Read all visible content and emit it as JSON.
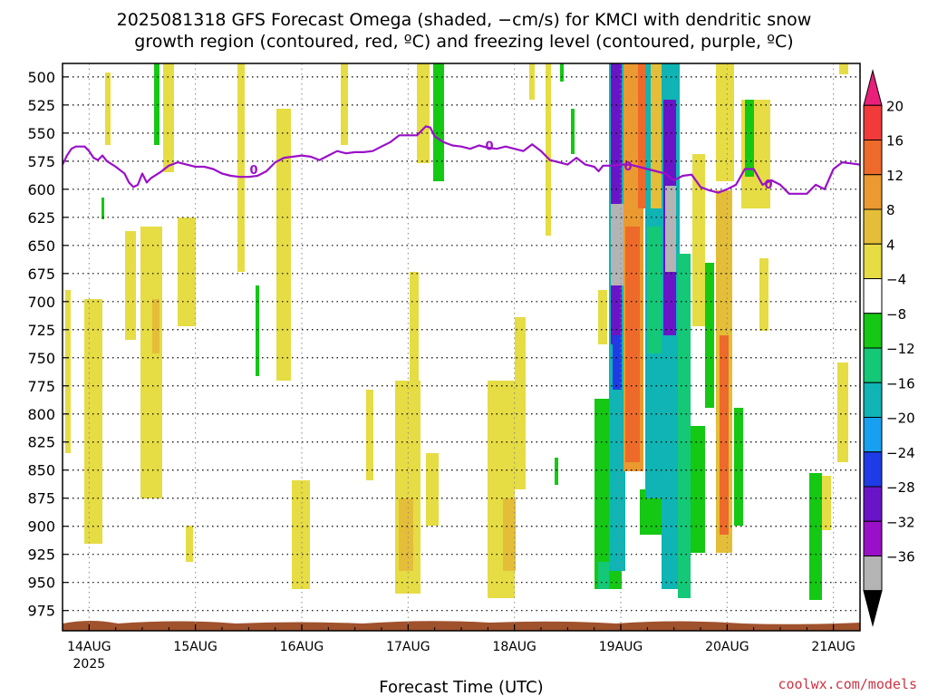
{
  "title_line1": "2025081318 GFS Forecast Omega (shaded, −cm/s) for KMCI with dendritic snow",
  "title_line2": "growth region (contoured, red, ºC) and freezing level (contoured, purple, ºC)",
  "xlabel": "Forecast Time (UTC)",
  "credit": "coolwx.com/models",
  "chart_data": {
    "type": "heatmap",
    "title": "2025081318 GFS Forecast Omega (shaded, −cm/s) for KMCI with dendritic snow growth region (contoured, red, ºC) and freezing level (contoured, purple, ºC)",
    "xlabel": "Forecast Time (UTC)",
    "ylabel": "",
    "x_ticks": [
      {
        "label": "14AUG",
        "sub": "2025",
        "t": 0
      },
      {
        "label": "15AUG",
        "t": 24
      },
      {
        "label": "16AUG",
        "t": 48
      },
      {
        "label": "17AUG",
        "t": 72
      },
      {
        "label": "18AUG",
        "t": 96
      },
      {
        "label": "19AUG",
        "t": 120
      },
      {
        "label": "20AUG",
        "t": 144
      },
      {
        "label": "21AUG",
        "t": 168
      }
    ],
    "xlim_hours": [
      -6,
      174
    ],
    "y_ticks": [
      500,
      525,
      550,
      575,
      600,
      625,
      650,
      675,
      700,
      725,
      750,
      775,
      800,
      825,
      850,
      875,
      900,
      925,
      950,
      975
    ],
    "ylim_hpa": [
      488,
      993
    ],
    "grid": true,
    "colorbar": {
      "labels": [
        "20",
        "16",
        "12",
        "8",
        "4",
        "−4",
        "−8",
        "−12",
        "−16",
        "−20",
        "−24",
        "−28",
        "−32",
        "−36"
      ],
      "colors": [
        "#e8207a",
        "#f23a3a",
        "#ee6a2a",
        "#ea9a30",
        "#e4be38",
        "#e6dc44",
        "#ffffff",
        "#14c814",
        "#14c878",
        "#10b4b4",
        "#18a0f0",
        "#1e3ce6",
        "#6a14c8",
        "#9a10c8",
        "#b4b4b4",
        "#000000"
      ]
    },
    "freezing_level": {
      "label": "0",
      "color": "#9a10c8",
      "points": [
        [
          -6,
          578
        ],
        [
          -5,
          570
        ],
        [
          -4,
          564
        ],
        [
          -3,
          562
        ],
        [
          -1,
          562
        ],
        [
          0,
          566
        ],
        [
          1,
          572
        ],
        [
          2,
          574
        ],
        [
          3,
          570
        ],
        [
          4,
          575
        ],
        [
          6,
          580
        ],
        [
          8,
          586
        ],
        [
          9,
          594
        ],
        [
          10,
          598
        ],
        [
          11,
          596
        ],
        [
          12,
          586
        ],
        [
          13,
          594
        ],
        [
          14,
          590
        ],
        [
          16,
          585
        ],
        [
          18,
          579
        ],
        [
          20,
          576
        ],
        [
          22,
          578
        ],
        [
          24,
          580
        ],
        [
          26,
          580
        ],
        [
          28,
          582
        ],
        [
          30,
          586
        ],
        [
          32,
          588
        ],
        [
          34,
          589
        ],
        [
          36,
          589
        ],
        [
          38,
          588
        ],
        [
          40,
          584
        ],
        [
          42,
          576
        ],
        [
          44,
          572
        ],
        [
          46,
          571
        ],
        [
          48,
          570
        ],
        [
          50,
          571
        ],
        [
          52,
          574
        ],
        [
          54,
          570
        ],
        [
          56,
          566
        ],
        [
          58,
          568
        ],
        [
          60,
          567
        ],
        [
          62,
          567
        ],
        [
          64,
          566
        ],
        [
          66,
          562
        ],
        [
          68,
          558
        ],
        [
          70,
          552
        ],
        [
          72,
          552
        ],
        [
          74,
          552
        ],
        [
          75,
          548
        ],
        [
          76,
          544
        ],
        [
          77,
          545
        ],
        [
          78,
          553
        ],
        [
          80,
          558
        ],
        [
          82,
          561
        ],
        [
          84,
          562
        ],
        [
          86,
          564
        ],
        [
          88,
          561
        ],
        [
          90,
          563
        ],
        [
          92,
          564
        ],
        [
          94,
          562
        ],
        [
          96,
          564
        ],
        [
          98,
          566
        ],
        [
          100,
          560
        ],
        [
          102,
          566
        ],
        [
          104,
          574
        ],
        [
          106,
          576
        ],
        [
          108,
          578
        ],
        [
          110,
          572
        ],
        [
          112,
          578
        ],
        [
          114,
          580
        ],
        [
          115,
          584
        ],
        [
          116,
          579
        ],
        [
          118,
          579
        ],
        [
          120,
          578
        ],
        [
          122,
          578
        ],
        [
          124,
          580
        ],
        [
          126,
          582
        ],
        [
          128,
          584
        ],
        [
          130,
          586
        ],
        [
          132,
          592
        ],
        [
          134,
          588
        ],
        [
          136,
          587
        ],
        [
          138,
          598
        ],
        [
          140,
          601
        ],
        [
          142,
          603
        ],
        [
          144,
          600
        ],
        [
          146,
          596
        ],
        [
          148,
          582
        ],
        [
          150,
          582
        ],
        [
          152,
          596
        ],
        [
          154,
          592
        ],
        [
          156,
          596
        ],
        [
          158,
          604
        ],
        [
          160,
          604
        ],
        [
          162,
          604
        ],
        [
          164,
          596
        ],
        [
          166,
          600
        ],
        [
          168,
          582
        ],
        [
          170,
          576
        ],
        [
          172,
          577
        ],
        [
          174,
          578
        ]
      ]
    }
  }
}
